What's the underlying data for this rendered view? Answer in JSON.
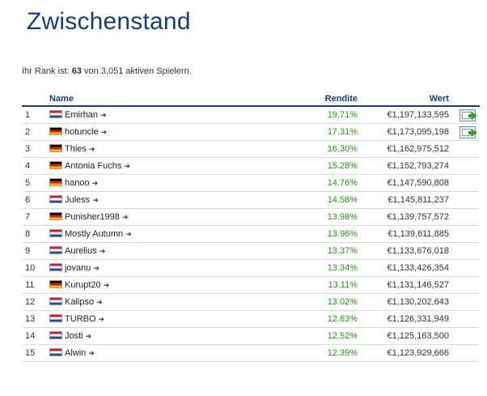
{
  "page": {
    "title": "Zwischenstand",
    "rank_prefix": "Ihr Rank ist: ",
    "rank_value": "63",
    "rank_suffix": " von 3,051 aktiven Spielern."
  },
  "table": {
    "headers": {
      "name": "Name",
      "rendite": "Rendite",
      "wert": "Wert"
    },
    "rows": [
      {
        "rank": "1",
        "flag": "nl",
        "name": "Emirhan",
        "rendite": "19.71%",
        "wert": "€1,197,133,595",
        "has_action": true
      },
      {
        "rank": "2",
        "flag": "de",
        "name": "hotuncle",
        "rendite": "17.31%",
        "wert": "€1,173,095,198",
        "has_action": true
      },
      {
        "rank": "3",
        "flag": "de",
        "name": "Thies",
        "rendite": "16.30%",
        "wert": "€1,162,975,512",
        "has_action": false
      },
      {
        "rank": "4",
        "flag": "de",
        "name": "Antonia Fuchs",
        "rendite": "15.28%",
        "wert": "€1,152,793,274",
        "has_action": false
      },
      {
        "rank": "5",
        "flag": "de",
        "name": "hanoo",
        "rendite": "14.76%",
        "wert": "€1,147,590,808",
        "has_action": false
      },
      {
        "rank": "6",
        "flag": "nl",
        "name": "Juless",
        "rendite": "14.58%",
        "wert": "€1,145,811,237",
        "has_action": false
      },
      {
        "rank": "7",
        "flag": "de",
        "name": "Punisher1998",
        "rendite": "13.98%",
        "wert": "€1,139,757,572",
        "has_action": false
      },
      {
        "rank": "8",
        "flag": "nl",
        "name": "Mostly Autumn",
        "rendite": "13.96%",
        "wert": "€1,139,611,885",
        "has_action": false
      },
      {
        "rank": "9",
        "flag": "nl",
        "name": "Aurelius",
        "rendite": "13.37%",
        "wert": "€1,133,676,018",
        "has_action": false
      },
      {
        "rank": "10",
        "flag": "nl",
        "name": "jovanu",
        "rendite": "13.34%",
        "wert": "€1,133,426,354",
        "has_action": false
      },
      {
        "rank": "11",
        "flag": "de",
        "name": "Kurupt20",
        "rendite": "13.11%",
        "wert": "€1,131,146,527",
        "has_action": false
      },
      {
        "rank": "12",
        "flag": "nl",
        "name": "Kalipso",
        "rendite": "13.02%",
        "wert": "€1,130,202,643",
        "has_action": false
      },
      {
        "rank": "13",
        "flag": "nl",
        "name": "TURBO",
        "rendite": "12.63%",
        "wert": "€1,126,331,949",
        "has_action": false
      },
      {
        "rank": "14",
        "flag": "nl",
        "name": "Josti",
        "rendite": "12.52%",
        "wert": "€1,125,163,500",
        "has_action": false
      },
      {
        "rank": "15",
        "flag": "nl",
        "name": "Alwin",
        "rendite": "12.39%",
        "wert": "€1,123,929,666",
        "has_action": false
      }
    ]
  },
  "icons": {
    "arrow": "arrow-right-icon",
    "action": "message-arrow-icon"
  },
  "colors": {
    "title": "#1b3d6d",
    "positive": "#2f8a22",
    "header_rule": "#1b3d6d"
  }
}
